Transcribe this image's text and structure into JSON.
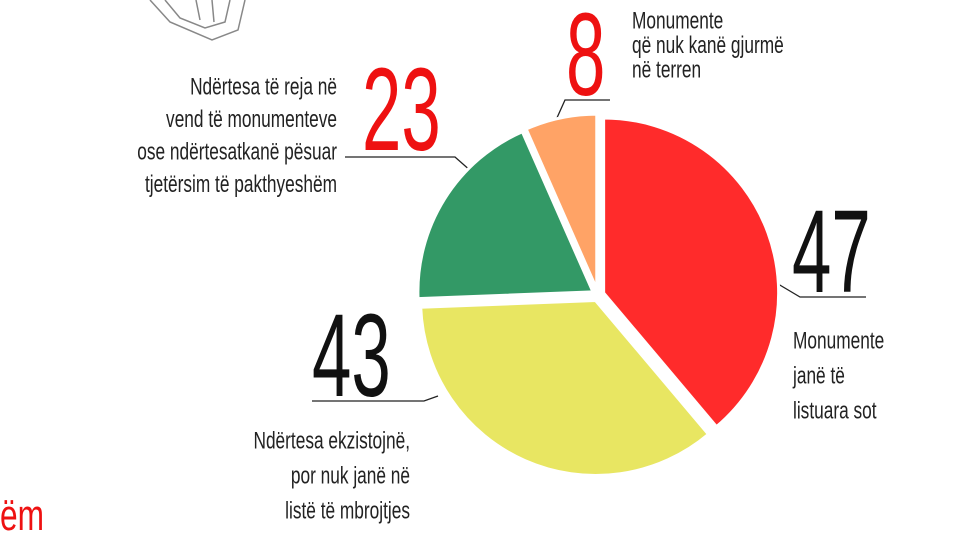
{
  "chart_data": {
    "type": "pie",
    "values": [
      47,
      43,
      23,
      8
    ],
    "categories": [
      [
        "Monumente",
        "janë të",
        "listuara sot"
      ],
      [
        "Ndërtesa ekzistojnë,",
        "por nuk janë në",
        "listë të mbrojtjes"
      ],
      [
        "Ndërtesa të reja në",
        "vend të monumenteve",
        "ose ndërtesatkanë pësuar",
        "tjetërsim të pakthyeshëm"
      ],
      [
        "Monumente",
        "që nuk kanë gjurmë",
        "në terren"
      ]
    ],
    "colors": [
      "#ff2b2b",
      "#e8e662",
      "#339966",
      "#ffa366"
    ],
    "number_colors": [
      "#111111",
      "#111111",
      "#ee1111",
      "#ee1111"
    ],
    "fragment_text": "ëm"
  }
}
